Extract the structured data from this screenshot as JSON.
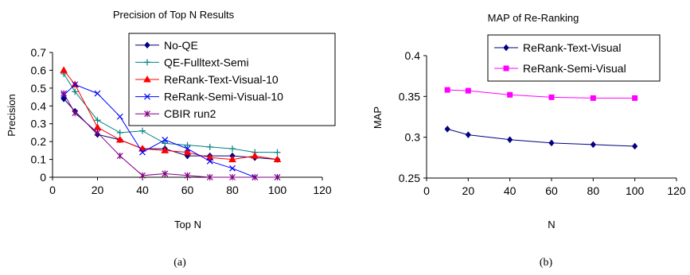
{
  "chart_data": [
    {
      "type": "line",
      "caption": "(a)",
      "title": "Precision of Top N Results",
      "xlabel": "Top N",
      "ylabel": "Precision",
      "xlim": [
        0,
        120
      ],
      "ylim": [
        0,
        0.7
      ],
      "xticks": [
        "0",
        "20",
        "40",
        "60",
        "80",
        "100",
        "120"
      ],
      "yticks": [
        "0",
        "0.1",
        "0.2",
        "0.3",
        "0.4",
        "0.5",
        "0.6",
        "0.7"
      ],
      "grid": false,
      "legend": "top-right",
      "x": [
        5,
        10,
        20,
        30,
        40,
        50,
        60,
        70,
        80,
        90,
        100
      ],
      "series": [
        {
          "name": "No-QE",
          "color": "#000080",
          "marker": "diamond",
          "values": [
            0.44,
            0.37,
            0.24,
            0.21,
            0.16,
            0.16,
            0.12,
            0.12,
            0.12,
            0.11,
            0.1
          ]
        },
        {
          "name": "QE-Fulltext-Semi",
          "color": "#008080",
          "marker": "plus",
          "values": [
            0.58,
            0.48,
            0.32,
            0.25,
            0.26,
            0.19,
            0.18,
            0.17,
            0.16,
            0.14,
            0.14
          ]
        },
        {
          "name": "ReRank-Text-Visual-10",
          "color": "#ff0000",
          "marker": "triangle",
          "values": [
            0.6,
            0.52,
            0.28,
            0.21,
            0.16,
            0.15,
            0.14,
            0.11,
            0.1,
            0.12,
            0.1
          ]
        },
        {
          "name": "ReRank-Semi-Visual-10",
          "color": "#0000ff",
          "marker": "x",
          "values": [
            0.46,
            0.52,
            0.47,
            0.34,
            0.14,
            0.21,
            0.16,
            0.09,
            0.05,
            0.0,
            0.0
          ]
        },
        {
          "name": "CBIR run2",
          "color": "#800080",
          "marker": "asterisk",
          "values": [
            0.47,
            0.36,
            0.25,
            0.12,
            0.01,
            0.02,
            0.01,
            0.0,
            0.0,
            0.0,
            0.0
          ]
        }
      ]
    },
    {
      "type": "line",
      "caption": "(b)",
      "title": "MAP of Re-Ranking",
      "xlabel": "N",
      "ylabel": "MAP",
      "xlim": [
        0,
        120
      ],
      "ylim": [
        0.25,
        0.4
      ],
      "xticks": [
        "0",
        "20",
        "40",
        "60",
        "80",
        "100",
        "120"
      ],
      "yticks": [
        "0.25",
        "0.3",
        "0.35",
        "0.4"
      ],
      "grid": false,
      "legend": "top-right",
      "x": [
        10,
        20,
        40,
        60,
        80,
        100
      ],
      "series": [
        {
          "name": "ReRank-Text-Visual",
          "color": "#000080",
          "marker": "diamond",
          "values": [
            0.31,
            0.303,
            0.297,
            0.293,
            0.291,
            0.289
          ]
        },
        {
          "name": "ReRank-Semi-Visual",
          "color": "#ff00ff",
          "marker": "square",
          "values": [
            0.358,
            0.357,
            0.352,
            0.349,
            0.348,
            0.348
          ]
        }
      ]
    }
  ]
}
